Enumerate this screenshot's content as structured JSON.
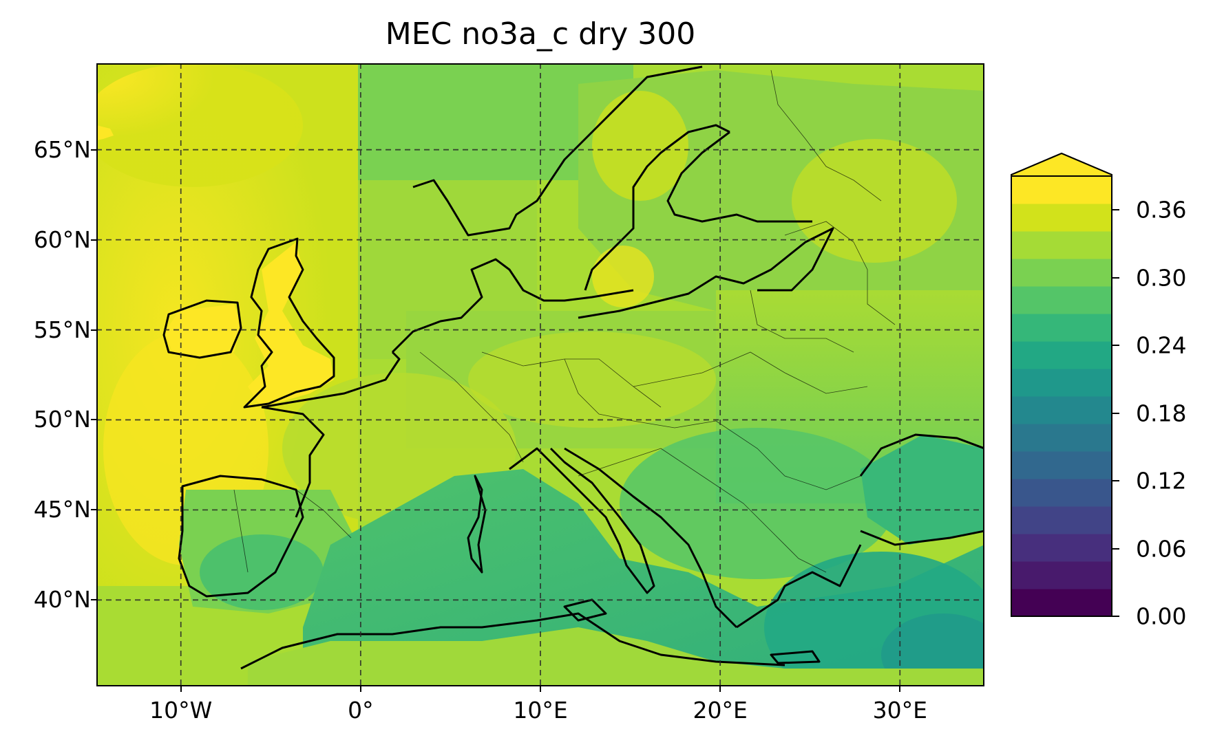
{
  "title": "MEC no3a_c dry 300",
  "lat_labels": [
    "65°N",
    "60°N",
    "55°N",
    "50°N",
    "45°N",
    "40°N"
  ],
  "lat_values": [
    65,
    60,
    55,
    50,
    45,
    40
  ],
  "lon_labels": [
    "10°W",
    "0°",
    "10°E",
    "20°E",
    "30°E"
  ],
  "lon_values": [
    -10,
    0,
    10,
    20,
    30
  ],
  "map_extent": {
    "lon": [
      -14.7,
      34.7
    ],
    "lat": [
      35.2,
      69.8
    ]
  },
  "colorbar": {
    "labels": [
      "0.36",
      "0.30",
      "0.24",
      "0.18",
      "0.12",
      "0.06",
      "0.00"
    ],
    "values": [
      0.36,
      0.3,
      0.24,
      0.18,
      0.12,
      0.06,
      0.0
    ],
    "range": [
      0.0,
      0.39
    ],
    "extend": "max",
    "colormap": "viridis",
    "colors": [
      "#440154",
      "#481a6c",
      "#472f7d",
      "#414487",
      "#39568c",
      "#31688e",
      "#2a788e",
      "#23888e",
      "#1f988b",
      "#22a884",
      "#35b779",
      "#54c568",
      "#7ad151",
      "#a5db36",
      "#d2e21b",
      "#fde725"
    ]
  },
  "gridlines": "dashed",
  "colors": {
    "ocean_high": "#f2e61d",
    "sea_low": "#35b779",
    "coast": "#000000"
  }
}
